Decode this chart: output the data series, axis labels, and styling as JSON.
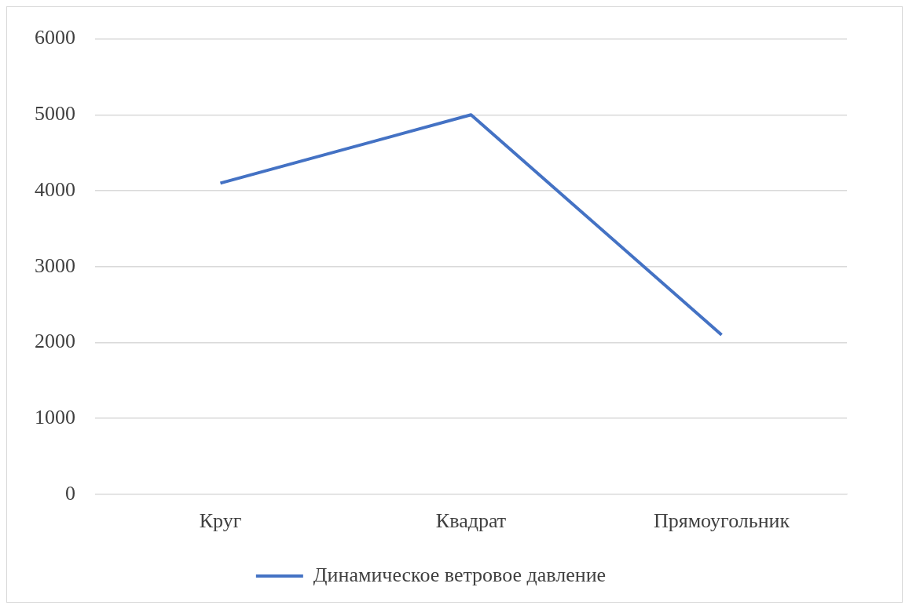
{
  "chart_data": {
    "type": "line",
    "categories": [
      "Круг",
      "Квадрат",
      "Прямоугольник"
    ],
    "series": [
      {
        "name": "Динамическое ветровое давление",
        "color": "#4472c4",
        "values": [
          4100,
          5000,
          2100
        ]
      }
    ],
    "ylim": [
      0,
      6000
    ],
    "yticks": [
      0,
      1000,
      2000,
      3000,
      4000,
      5000,
      6000
    ],
    "grid": "y",
    "legend": "bottom",
    "marker": "none",
    "line_style": "solid"
  }
}
